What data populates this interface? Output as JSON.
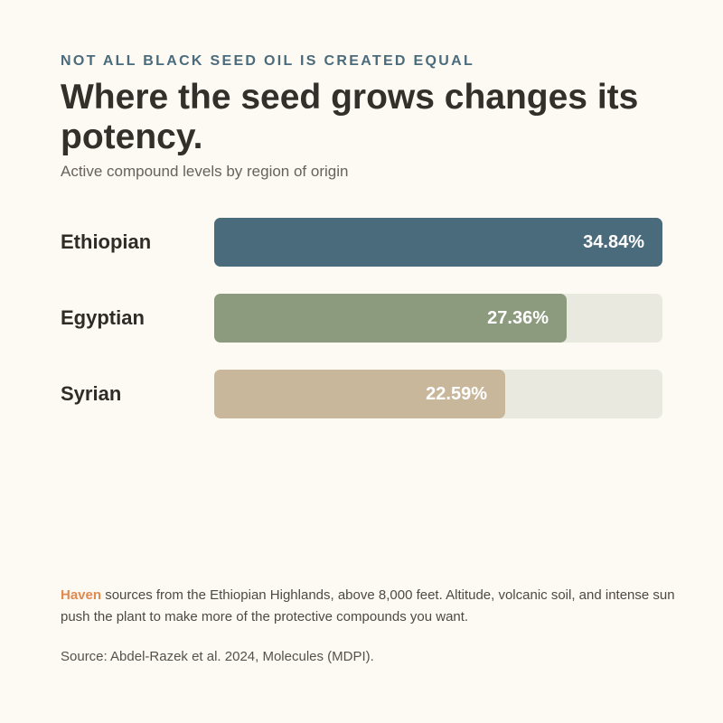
{
  "header": {
    "eyebrow": "NOT ALL BLACK SEED OIL IS CREATED EQUAL",
    "title": "Where the seed grows changes its potency.",
    "subtitle": "Active compound levels by region of origin"
  },
  "chart_data": {
    "type": "bar",
    "orientation": "horizontal",
    "categories": [
      "Ethiopian",
      "Egyptian",
      "Syrian"
    ],
    "values": [
      34.84,
      27.36,
      22.59
    ],
    "value_labels": [
      "34.84%",
      "27.36%",
      "22.59%"
    ],
    "unit": "%",
    "xlim": [
      0,
      34.84
    ],
    "grid": false,
    "colors": [
      "#4a6b7c",
      "#8c9a7e",
      "#c9b79b"
    ],
    "track_color": "#e9e9e0"
  },
  "footer": {
    "brand": "Haven",
    "note": " sources from the Ethiopian Highlands, above 8,000 feet. Altitude, volcanic soil, and intense sun push the plant to make more of the protective compounds you want.",
    "source": "Source: Abdel-Razek et al. 2024, Molecules (MDPI)."
  },
  "colors": {
    "background": "#fdf9f3",
    "eyebrow": "#4a6b7c",
    "brand": "#e08a4f"
  }
}
